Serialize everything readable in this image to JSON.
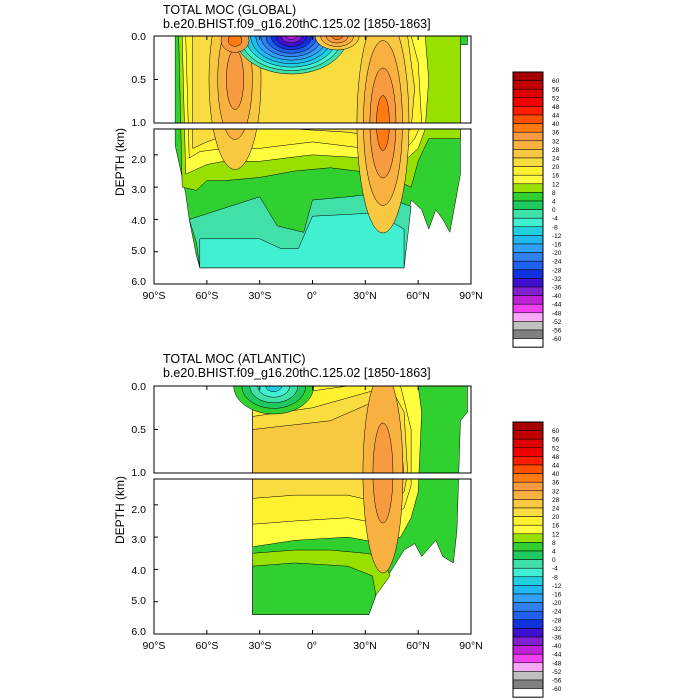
{
  "chart_data": [
    {
      "type": "heatmap",
      "title": "TOTAL MOC (GLOBAL)",
      "subtitle": "b.e20.BHIST.f09_g16.20thC.125.02 [1850-1863]",
      "ylabel": "DEPTH (km)",
      "xlabel": "",
      "xlim": [
        -90,
        90
      ],
      "ylim": [
        6.0,
        0.0
      ],
      "y_split": [
        1.0,
        1.2
      ],
      "x_ticks": [
        "90°S",
        "60°S",
        "30°S",
        "0°",
        "30°N",
        "60°N",
        "90°N"
      ],
      "y_ticks_upper": [
        "0.0",
        "0.5",
        "1.0"
      ],
      "y_ticks_lower": [
        "2.0",
        "3.0",
        "4.0",
        "5.0",
        "6.0"
      ],
      "features": [
        {
          "kind": "cell",
          "lat": -43,
          "depth": 0.3,
          "value": 30
        },
        {
          "kind": "cell",
          "lat": 40,
          "depth": 1.0,
          "value": 32
        },
        {
          "kind": "cell",
          "lat": -12,
          "depth": 0.03,
          "value": -44
        },
        {
          "kind": "cell",
          "lat": 14,
          "depth": 0.03,
          "value": 36
        }
      ]
    },
    {
      "type": "heatmap",
      "title": "TOTAL MOC (ATLANTIC)",
      "subtitle": "b.e20.BHIST.f09_g16.20thC.125.02 [1850-1863]",
      "ylabel": "DEPTH (km)",
      "xlabel": "",
      "xlim": [
        -90,
        90
      ],
      "ylim": [
        6.0,
        0.0
      ],
      "y_split": [
        1.0,
        1.2
      ],
      "x_ticks": [
        "90°S",
        "60°S",
        "30°S",
        "0°",
        "30°N",
        "60°N",
        "90°N"
      ],
      "y_ticks_upper": [
        "0.0",
        "0.5",
        "1.0"
      ],
      "y_ticks_lower": [
        "2.0",
        "3.0",
        "4.0",
        "5.0",
        "6.0"
      ],
      "features": [
        {
          "kind": "cell",
          "lat": 40,
          "depth": 1.0,
          "value": 28
        },
        {
          "kind": "cell",
          "lat": -22,
          "depth": 0.05,
          "value": -12
        }
      ]
    }
  ],
  "colorbar": {
    "labels": [
      "60",
      "56",
      "52",
      "48",
      "44",
      "40",
      "36",
      "32",
      "28",
      "24",
      "20",
      "16",
      "12",
      "8",
      "4",
      "0",
      "-4",
      "-8",
      "-12",
      "-16",
      "-20",
      "-24",
      "-28",
      "-32",
      "-36",
      "-40",
      "-44",
      "-48",
      "-52",
      "-56",
      "-60"
    ],
    "colors": [
      "#A50000",
      "#C00000",
      "#DC0000",
      "#F00000",
      "#FF1E00",
      "#FF5000",
      "#FF7A10",
      "#F89A40",
      "#F8B040",
      "#F8C840",
      "#F8DC40",
      "#FFF030",
      "#FFFF40",
      "#98E000",
      "#30D030",
      "#20C860",
      "#40E0A8",
      "#40F0D0",
      "#20D0E0",
      "#20B8F0",
      "#30A0F8",
      "#3080F0",
      "#2060F0",
      "#1030E0",
      "#4010D0",
      "#8020D0",
      "#C020D8",
      "#F040F0",
      "#F8A8F8",
      "#C0C0C0",
      "#808080",
      "#FFFFFF"
    ]
  }
}
